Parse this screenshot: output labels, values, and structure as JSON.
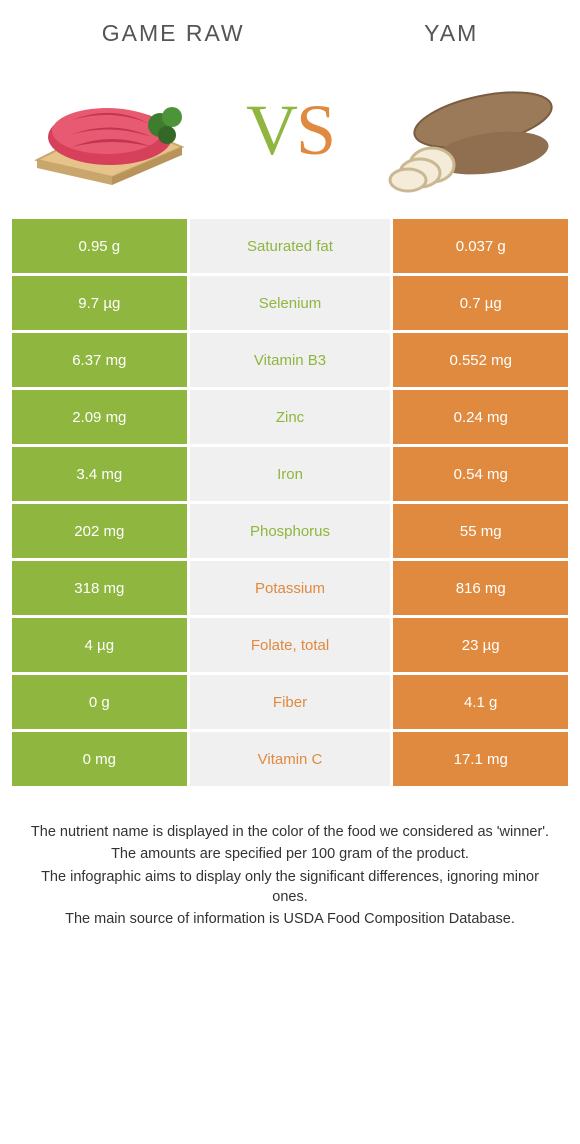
{
  "colors": {
    "left": "#8fb63f",
    "right": "#e08a3f",
    "mid_bg": "#f0f0f0",
    "text": "#333333"
  },
  "titles": {
    "left": "Game raw",
    "right": "Yam"
  },
  "vs": {
    "v": "V",
    "s": "S"
  },
  "rows": [
    {
      "left": "0.95 g",
      "label": "Saturated fat",
      "right": "0.037 g",
      "winner": "left"
    },
    {
      "left": "9.7 µg",
      "label": "Selenium",
      "right": "0.7 µg",
      "winner": "left"
    },
    {
      "left": "6.37 mg",
      "label": "Vitamin B3",
      "right": "0.552 mg",
      "winner": "left"
    },
    {
      "left": "2.09 mg",
      "label": "Zinc",
      "right": "0.24 mg",
      "winner": "left"
    },
    {
      "left": "3.4 mg",
      "label": "Iron",
      "right": "0.54 mg",
      "winner": "left"
    },
    {
      "left": "202 mg",
      "label": "Phosphorus",
      "right": "55 mg",
      "winner": "left"
    },
    {
      "left": "318 mg",
      "label": "Potassium",
      "right": "816 mg",
      "winner": "right"
    },
    {
      "left": "4 µg",
      "label": "Folate, total",
      "right": "23 µg",
      "winner": "right"
    },
    {
      "left": "0 g",
      "label": "Fiber",
      "right": "4.1 g",
      "winner": "right"
    },
    {
      "left": "0 mg",
      "label": "Vitamin C",
      "right": "17.1 mg",
      "winner": "right"
    }
  ],
  "footer": [
    "The nutrient name is displayed in the color of the food we considered as 'winner'.",
    "The amounts are specified per 100 gram of the product.",
    "The infographic aims to display only the significant differences, ignoring minor ones.",
    "The main source of information is USDA Food Composition Database."
  ]
}
